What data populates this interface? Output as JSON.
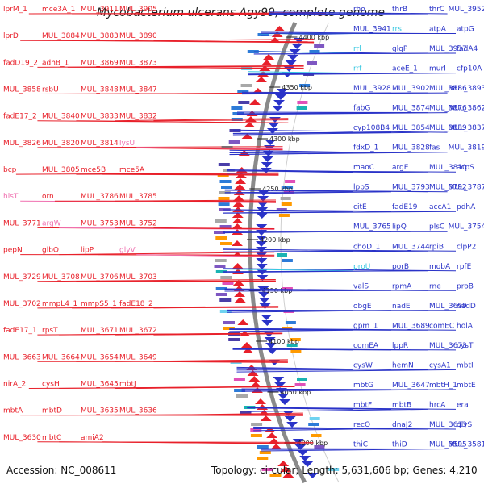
{
  "title": "Mycobacterium ulcerans Agy99, complete genome",
  "footer": {
    "accession": "Accession: NC_008611",
    "meta": "Topology: circular; Length: 5,631,606 bp; Genes: 4,210"
  },
  "colors": {
    "forward": "#e8202a",
    "reverse": "#2a33c8",
    "rna_pink": "#f070b0",
    "rna_cyan": "#33c6e0",
    "backbone": "#8a8a8a",
    "tick_green": "#2a8a2a"
  },
  "kbp_labels": [
    {
      "text": "4400 kbp"
    },
    {
      "text": "4350 kbp"
    },
    {
      "text": "4300 kbp"
    },
    {
      "text": "4250 kbp"
    },
    {
      "text": "4200 kbp"
    },
    {
      "text": "4150 kbp"
    },
    {
      "text": "4100 kbp"
    },
    {
      "text": "4050 kbp"
    },
    {
      "text": "4000 kbp"
    }
  ],
  "left_labels": [
    {
      "text": "lprM_1"
    },
    {
      "text": "mce3A_1"
    },
    {
      "text": "MUL_3911"
    },
    {
      "text": "MUL_3905"
    },
    {
      "text": "lprD"
    },
    {
      "text": "MUL_3884"
    },
    {
      "text": "MUL_3883"
    },
    {
      "text": "MUL_3890"
    },
    {
      "text": "fadD19_2"
    },
    {
      "text": "adhB_1"
    },
    {
      "text": "MUL_3869"
    },
    {
      "text": "MUL_3873"
    },
    {
      "text": "MUL_3858"
    },
    {
      "text": "rsbU"
    },
    {
      "text": "MUL_3848"
    },
    {
      "text": "MUL_3847"
    },
    {
      "text": "fadE17_2"
    },
    {
      "text": "MUL_3840"
    },
    {
      "text": "MUL_3833"
    },
    {
      "text": "MUL_3832"
    },
    {
      "text": "MUL_3826"
    },
    {
      "text": "MUL_3820"
    },
    {
      "text": "MUL_3814"
    },
    {
      "text": "lysU",
      "pink": true
    },
    {
      "text": "bcp"
    },
    {
      "text": "MUL_3805"
    },
    {
      "text": "mce5B"
    },
    {
      "text": "mce5A"
    },
    {
      "text": "hisT",
      "pink": true
    },
    {
      "text": "orn"
    },
    {
      "text": "MUL_3786"
    },
    {
      "text": "MUL_3785"
    },
    {
      "text": "MUL_3771"
    },
    {
      "text": "argW",
      "pink": true
    },
    {
      "text": "MUL_3753"
    },
    {
      "text": "MUL_3752"
    },
    {
      "text": "pepN"
    },
    {
      "text": "glbO"
    },
    {
      "text": "lipP"
    },
    {
      "text": "glyV",
      "pink": true
    },
    {
      "text": "MUL_3729"
    },
    {
      "text": "MUL_3708"
    },
    {
      "text": "MUL_3706"
    },
    {
      "text": "MUL_3703"
    },
    {
      "text": "MUL_3702"
    },
    {
      "text": "mmpL4_1"
    },
    {
      "text": "mmpS5_1"
    },
    {
      "text": "fadE18_2"
    },
    {
      "text": "fadE17_1"
    },
    {
      "text": "rpsT"
    },
    {
      "text": "MUL_3671"
    },
    {
      "text": "MUL_3672"
    },
    {
      "text": "MUL_3663"
    },
    {
      "text": "MUL_3664"
    },
    {
      "text": "MUL_3654"
    },
    {
      "text": "MUL_3649"
    },
    {
      "text": "nirA_2"
    },
    {
      "text": "cysH"
    },
    {
      "text": "MUL_3645"
    },
    {
      "text": "mbtJ"
    },
    {
      "text": "mbtA"
    },
    {
      "text": "mbtD"
    },
    {
      "text": "MUL_3635"
    },
    {
      "text": "MUL_3636"
    },
    {
      "text": "MUL_3630"
    },
    {
      "text": "mbtC"
    },
    {
      "text": "amiA2"
    }
  ],
  "right_labels": [
    {
      "text": "rho"
    },
    {
      "text": "thrB"
    },
    {
      "text": "thrC"
    },
    {
      "text": "MUL_3952"
    },
    {
      "text": "MUL_3941"
    },
    {
      "text": "rrs",
      "cyan": true
    },
    {
      "text": "atpA"
    },
    {
      "text": "atpG"
    },
    {
      "text": "rrl",
      "cyan": true
    },
    {
      "text": "glgP"
    },
    {
      "text": "MUL_3937"
    },
    {
      "text": "fadA4"
    },
    {
      "text": "rrf",
      "cyan": true
    },
    {
      "text": "aceE_1"
    },
    {
      "text": "murI"
    },
    {
      "text": "cfp10A"
    },
    {
      "text": "MUL_3928"
    },
    {
      "text": "MUL_3902"
    },
    {
      "text": "MUL_3886"
    },
    {
      "text": "MUL_3893"
    },
    {
      "text": "fabG"
    },
    {
      "text": "MUL_3874"
    },
    {
      "text": "MUL_3876"
    },
    {
      "text": "MUL_3862"
    },
    {
      "text": "cyp108B4"
    },
    {
      "text": "MUL_3854"
    },
    {
      "text": "MUL_3839"
    },
    {
      "text": "MUL_3837"
    },
    {
      "text": "fdxD_1"
    },
    {
      "text": "MUL_3828"
    },
    {
      "text": "fas"
    },
    {
      "text": "MUL_3819"
    },
    {
      "text": "maoC"
    },
    {
      "text": "argE"
    },
    {
      "text": "MUL_3810"
    },
    {
      "text": "acpS"
    },
    {
      "text": "lppS"
    },
    {
      "text": "MUL_3793"
    },
    {
      "text": "MUL_3792"
    },
    {
      "text": "MUL_3787"
    },
    {
      "text": "citE"
    },
    {
      "text": "fadE19"
    },
    {
      "text": "accA1"
    },
    {
      "text": "pdhA"
    },
    {
      "text": "MUL_3765"
    },
    {
      "text": "lipQ"
    },
    {
      "text": "plsC"
    },
    {
      "text": "MUL_3754"
    },
    {
      "text": "choD_1"
    },
    {
      "text": "MUL_3744"
    },
    {
      "text": "rpiB"
    },
    {
      "text": "clpP2"
    },
    {
      "text": "proU",
      "cyan": true
    },
    {
      "text": "porB"
    },
    {
      "text": "mobA"
    },
    {
      "text": "rpfE"
    },
    {
      "text": "valS"
    },
    {
      "text": "rpmA"
    },
    {
      "text": "rne"
    },
    {
      "text": "proB"
    },
    {
      "text": "obgE"
    },
    {
      "text": "nadE"
    },
    {
      "text": "MUL_3699"
    },
    {
      "text": "nadD"
    },
    {
      "text": "gpm_1"
    },
    {
      "text": "MUL_3689"
    },
    {
      "text": "comEC"
    },
    {
      "text": "holA"
    },
    {
      "text": "comEA"
    },
    {
      "text": "lppR"
    },
    {
      "text": "MUL_3673"
    },
    {
      "text": "cysT"
    },
    {
      "text": "cysW"
    },
    {
      "text": "hemN"
    },
    {
      "text": "cysA1"
    },
    {
      "text": "mbtI"
    },
    {
      "text": "mbtG"
    },
    {
      "text": "MUL_3647"
    },
    {
      "text": "mbtH_1"
    },
    {
      "text": "mbtE"
    },
    {
      "text": "mbtF"
    },
    {
      "text": "mbtB"
    },
    {
      "text": "hrcA"
    },
    {
      "text": "era"
    },
    {
      "text": "recO"
    },
    {
      "text": "dnaJ2"
    },
    {
      "text": "MUL_3613"
    },
    {
      "text": "glyS"
    },
    {
      "text": "thiC"
    },
    {
      "text": "thiD"
    },
    {
      "text": "MUL_3595"
    },
    {
      "text": "MUL_3581"
    }
  ]
}
